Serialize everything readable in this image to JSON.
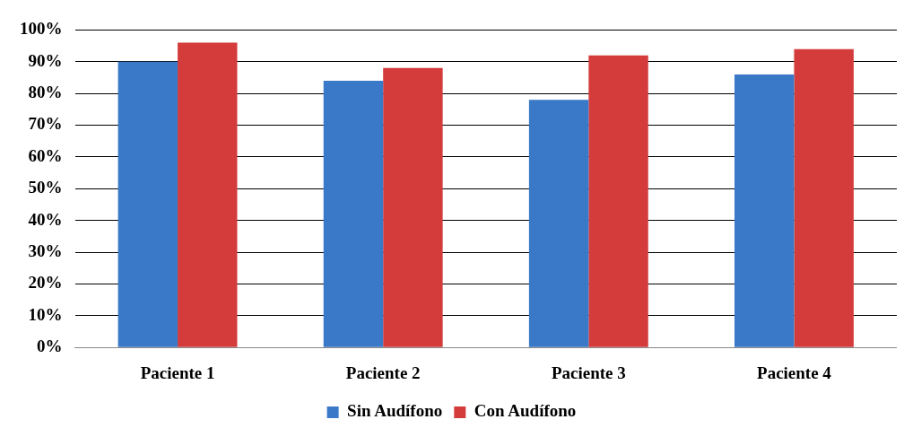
{
  "chart_data": {
    "type": "bar",
    "categories": [
      "Paciente 1",
      "Paciente 2",
      "Paciente 3",
      "Paciente 4"
    ],
    "series": [
      {
        "name": "Sin Audífono",
        "color": "#3a78c8",
        "values": [
          90,
          84,
          78,
          86
        ]
      },
      {
        "name": "Con Audífono",
        "color": "#d43c3c",
        "values": [
          96,
          88,
          92,
          94
        ]
      }
    ],
    "ylim": [
      0,
      100
    ],
    "yticks": [
      {
        "value": 0,
        "label": "0%"
      },
      {
        "value": 10,
        "label": "10%"
      },
      {
        "value": 20,
        "label": "20%"
      },
      {
        "value": 30,
        "label": "30%"
      },
      {
        "value": 40,
        "label": "40%"
      },
      {
        "value": 50,
        "label": "50%"
      },
      {
        "value": 60,
        "label": "60%"
      },
      {
        "value": 70,
        "label": "70%"
      },
      {
        "value": 80,
        "label": "80%"
      },
      {
        "value": 90,
        "label": "90%"
      },
      {
        "value": 100,
        "label": "100%"
      }
    ],
    "grid": "y",
    "legend": "bottom"
  }
}
